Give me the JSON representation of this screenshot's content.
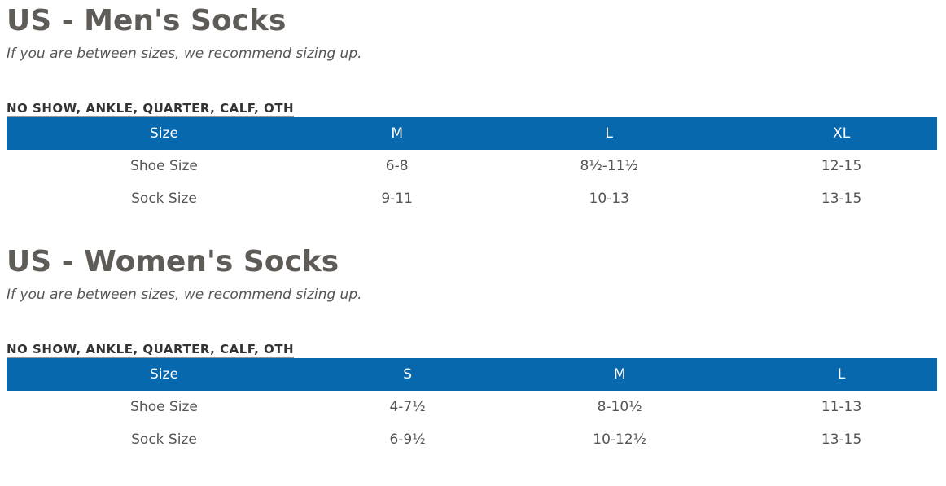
{
  "sections": [
    {
      "title": "US - Men's Socks",
      "note": "If you are between sizes, we recommend sizing up.",
      "subtitle": "NO SHOW, ANKLE, QUARTER, CALF, OTH",
      "table": {
        "header": [
          "Size",
          "M",
          "L",
          "XL"
        ],
        "rows": [
          [
            "Shoe Size",
            "6-8",
            "8½-11½",
            "12-15"
          ],
          [
            "Sock Size",
            "9-11",
            "10-13",
            "13-15"
          ]
        ]
      }
    },
    {
      "title": "US - Women's Socks",
      "note": "If you are between sizes, we recommend sizing up.",
      "subtitle": "NO SHOW, ANKLE, QUARTER, CALF, OTH",
      "table": {
        "header": [
          "Size",
          "S",
          "M",
          "L"
        ],
        "rows": [
          [
            "Shoe Size",
            "4-7½",
            "8-10½",
            "11-13"
          ],
          [
            "Sock Size",
            "6-9½",
            "10-12½",
            "13-15"
          ]
        ]
      }
    }
  ]
}
